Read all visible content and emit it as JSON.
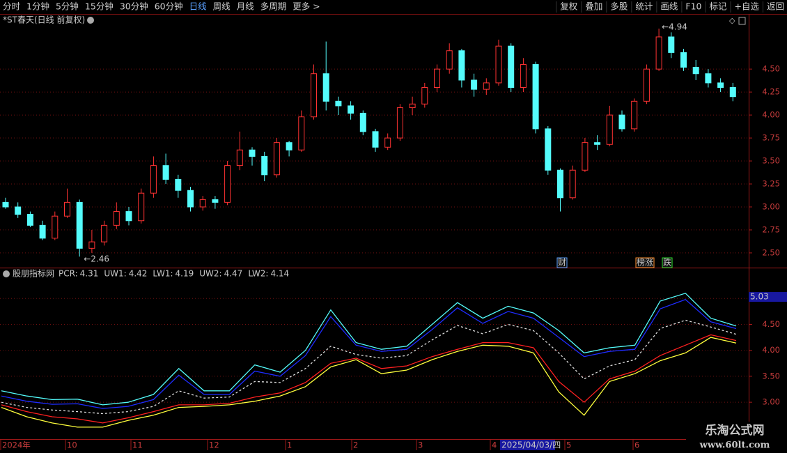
{
  "toolbar": {
    "left": [
      "分时",
      "1分钟",
      "5分钟",
      "15分钟",
      "30分钟",
      "60分钟",
      "日线",
      "周线",
      "月线",
      "多周期",
      "更多 >"
    ],
    "active": 6,
    "right": [
      "复权",
      "叠加",
      "多股",
      "统计",
      "画线",
      "F10",
      "标记",
      "+自选",
      "返回"
    ]
  },
  "chart_data": [
    {
      "type": "candlestick",
      "title": "*ST春天(日线 前复权)",
      "up_color": "#ff3232",
      "down_color": "#54fcfc",
      "grid": true,
      "ylim": [
        2.34,
        5.1
      ],
      "yticks": [
        {
          "value": 2.5,
          "label": "2.50"
        },
        {
          "value": 2.75,
          "label": "2.75"
        },
        {
          "value": 3.0,
          "label": "3.00"
        },
        {
          "value": 3.25,
          "label": "3.25"
        },
        {
          "value": 3.5,
          "label": "3.50"
        },
        {
          "value": 3.75,
          "label": "3.75"
        },
        {
          "value": 4.0,
          "label": "4.00"
        },
        {
          "value": 4.25,
          "label": "4.25"
        },
        {
          "value": 4.5,
          "label": "4.50"
        }
      ],
      "open": [
        3.05,
        3.0,
        2.92,
        2.8,
        2.66,
        2.9,
        3.05,
        2.55,
        2.62,
        2.8,
        2.95,
        2.85,
        3.15,
        3.45,
        3.3,
        3.18,
        3.0,
        3.08,
        3.05,
        3.45,
        3.62,
        3.55,
        3.35,
        3.7,
        3.62,
        3.98,
        4.45,
        4.15,
        4.1,
        4.02,
        3.82,
        3.65,
        3.75,
        4.08,
        4.12,
        4.3,
        4.5,
        4.7,
        4.38,
        4.28,
        4.35,
        4.75,
        4.3,
        4.55,
        3.85,
        3.4,
        3.1,
        3.4,
        3.7,
        3.68,
        4.0,
        3.85,
        4.15,
        4.5,
        4.85,
        4.68,
        4.52,
        4.45,
        4.35,
        4.3
      ],
      "high": [
        3.1,
        3.05,
        2.95,
        2.85,
        2.95,
        3.2,
        3.08,
        2.75,
        2.85,
        3.05,
        3.0,
        3.2,
        3.55,
        3.58,
        3.35,
        3.22,
        3.12,
        3.12,
        3.5,
        3.82,
        3.65,
        3.6,
        3.75,
        3.72,
        4.05,
        4.55,
        4.8,
        4.2,
        4.15,
        4.05,
        3.85,
        3.8,
        4.12,
        4.2,
        4.35,
        4.55,
        4.78,
        4.72,
        4.45,
        4.4,
        4.82,
        4.78,
        4.62,
        4.58,
        3.88,
        3.42,
        3.45,
        3.75,
        3.78,
        4.1,
        4.05,
        4.18,
        4.55,
        4.94,
        4.9,
        4.72,
        4.6,
        4.5,
        4.4,
        4.35
      ],
      "low": [
        2.98,
        2.88,
        2.78,
        2.64,
        2.64,
        2.88,
        2.46,
        2.5,
        2.58,
        2.76,
        2.8,
        2.82,
        3.1,
        3.25,
        3.1,
        2.95,
        2.96,
        2.98,
        3.02,
        3.4,
        3.45,
        3.28,
        3.32,
        3.55,
        3.6,
        3.95,
        4.05,
        4.0,
        3.95,
        3.78,
        3.6,
        3.62,
        3.72,
        4.0,
        4.08,
        4.25,
        4.45,
        4.3,
        4.2,
        4.22,
        4.32,
        4.25,
        4.25,
        3.8,
        3.35,
        2.95,
        3.08,
        3.38,
        3.62,
        3.66,
        3.82,
        3.82,
        4.12,
        4.48,
        4.62,
        4.48,
        4.38,
        4.3,
        4.25,
        4.15
      ],
      "close": [
        3.0,
        2.92,
        2.8,
        2.66,
        2.9,
        3.05,
        2.55,
        2.62,
        2.8,
        2.95,
        2.85,
        3.15,
        3.45,
        3.3,
        3.18,
        3.0,
        3.08,
        3.05,
        3.45,
        3.62,
        3.55,
        3.35,
        3.7,
        3.62,
        3.98,
        4.45,
        4.15,
        4.1,
        4.02,
        3.82,
        3.65,
        3.75,
        4.08,
        4.12,
        4.3,
        4.5,
        4.7,
        4.38,
        4.28,
        4.35,
        4.75,
        4.3,
        4.55,
        3.85,
        3.4,
        3.1,
        3.4,
        3.7,
        3.68,
        4.0,
        3.85,
        4.15,
        4.5,
        4.85,
        4.68,
        4.52,
        4.45,
        4.35,
        4.3,
        4.2
      ],
      "low_label": "←2.46",
      "high_label": "←4.94",
      "events": [
        "财",
        "榜涨",
        "跌"
      ]
    },
    {
      "type": "line",
      "title": "股朋指标网",
      "ylim": [
        2.29,
        5.38
      ],
      "yticks": [
        {
          "value": 3.0,
          "label": "3.00"
        },
        {
          "value": 3.5,
          "label": "3.50"
        },
        {
          "value": 4.0,
          "label": "4.00"
        },
        {
          "value": 4.5,
          "label": "4.50"
        },
        {
          "value": 5.0,
          "label": "5.00"
        }
      ],
      "grid": true,
      "cursor_value": {
        "value": 5.03,
        "label": "5.03"
      },
      "series": [
        {
          "name": "PCR:",
          "color": "#dddddd",
          "dashed": true,
          "values": [
            3.0,
            2.9,
            2.85,
            2.82,
            2.78,
            2.82,
            2.92,
            3.22,
            3.08,
            3.1,
            3.4,
            3.38,
            3.65,
            4.08,
            3.92,
            3.85,
            3.9,
            4.2,
            4.48,
            4.32,
            4.5,
            4.38,
            3.95,
            3.45,
            3.7,
            3.82,
            4.42,
            4.58,
            4.45,
            4.31
          ]
        },
        {
          "name": "UW1:",
          "color": "#1e2cff",
          "values": [
            3.12,
            3.02,
            2.96,
            2.97,
            2.88,
            2.92,
            3.05,
            3.52,
            3.15,
            3.15,
            3.6,
            3.5,
            3.9,
            4.65,
            4.1,
            3.98,
            4.02,
            4.4,
            4.82,
            4.52,
            4.75,
            4.62,
            4.25,
            3.88,
            3.98,
            4.02,
            4.8,
            4.98,
            4.55,
            4.42
          ]
        },
        {
          "name": "LW1:",
          "color": "#ff2020",
          "values": [
            2.95,
            2.82,
            2.72,
            2.68,
            2.6,
            2.7,
            2.82,
            2.95,
            2.95,
            2.98,
            3.1,
            3.18,
            3.38,
            3.75,
            3.85,
            3.65,
            3.7,
            3.88,
            4.02,
            4.15,
            4.15,
            4.05,
            3.4,
            3.0,
            3.45,
            3.6,
            3.9,
            4.1,
            4.3,
            4.19
          ]
        },
        {
          "name": "UW2:",
          "color": "#54fcfc",
          "values": [
            3.22,
            3.12,
            3.05,
            3.06,
            2.95,
            3.0,
            3.15,
            3.65,
            3.22,
            3.22,
            3.72,
            3.58,
            4.0,
            4.78,
            4.15,
            4.02,
            4.08,
            4.5,
            4.92,
            4.62,
            4.85,
            4.72,
            4.38,
            3.95,
            4.05,
            4.1,
            4.95,
            5.1,
            4.62,
            4.47
          ]
        },
        {
          "name": "LW2:",
          "color": "#ffff3c",
          "values": [
            2.9,
            2.72,
            2.6,
            2.52,
            2.52,
            2.65,
            2.75,
            2.9,
            2.92,
            2.95,
            3.02,
            3.12,
            3.3,
            3.68,
            3.82,
            3.55,
            3.62,
            3.82,
            3.98,
            4.1,
            4.08,
            3.95,
            3.2,
            2.75,
            3.4,
            3.55,
            3.8,
            3.95,
            4.25,
            4.14
          ]
        }
      ]
    }
  ],
  "x_labels": [
    "2024年",
    "10",
    "11",
    "12",
    "1",
    "2",
    "3",
    "4",
    "5",
    "6"
  ],
  "cursor_date": "2025/04/03/四",
  "watermark": {
    "name": "乐淘公式网",
    "url": "www.60lt.com"
  }
}
